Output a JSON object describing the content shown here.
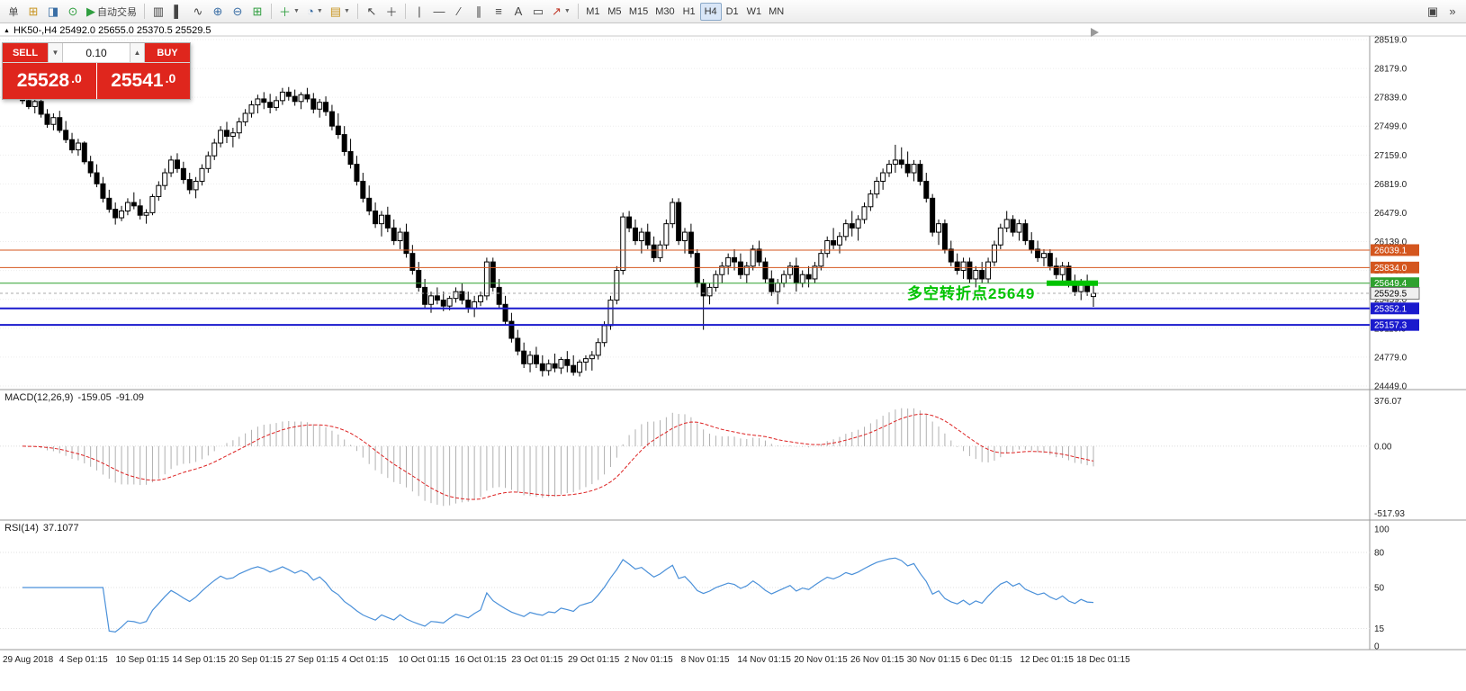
{
  "window": {
    "symbol_header": "HK50-,H4 25492.0 25655.0 25370.5 25529.5"
  },
  "toolbar": {
    "new_order_label": "单",
    "autotrading_label": "自动交易",
    "timeframes": [
      "M1",
      "M5",
      "M15",
      "M30",
      "H1",
      "H4",
      "D1",
      "W1",
      "MN"
    ],
    "active_timeframe": "H4"
  },
  "trade_panel": {
    "sell_label": "SELL",
    "buy_label": "BUY",
    "volume": "0.10",
    "sell_price_main": "25528",
    "sell_price_frac": ".0",
    "buy_price_main": "25541",
    "buy_price_frac": ".0"
  },
  "annotation": {
    "text": "多空转折点25649",
    "color": "#00c300"
  },
  "price_axis": {
    "max": 28519.0,
    "min": 24449.0,
    "step": 340,
    "labels": [
      "28519.0",
      "28179.0",
      "27839.0",
      "27499.0",
      "27159.0",
      "26819.0",
      "26479.0",
      "26139.0",
      "25799.0",
      "25459.0",
      "25119.0",
      "24779.0",
      "24449.0"
    ]
  },
  "hlines": [
    {
      "price": 26039.1,
      "label": "26039.1",
      "color": "#d4561e",
      "width": 1
    },
    {
      "price": 25834.0,
      "label": "25834.0",
      "color": "#d4561e",
      "width": 1
    },
    {
      "price": 25649.4,
      "label": "25649.4",
      "color": "#2fa12f",
      "width": 1
    },
    {
      "price": 25352.1,
      "label": "25352.1",
      "color": "#1a1acd",
      "width": 2
    },
    {
      "price": 25157.3,
      "label": "25157.3",
      "color": "#1a1acd",
      "width": 2
    }
  ],
  "current_price": {
    "value": 25529.5,
    "label": "25529.5"
  },
  "highlight_segment": {
    "price": 25649.4,
    "color": "#00c300"
  },
  "indicators": {
    "macd": {
      "name": "MACD(12,26,9)",
      "value_main": "-159.05",
      "value_signal": "-91.09",
      "fast": 12,
      "slow": 26,
      "signal": 9,
      "axis_labels": [
        "376.07",
        "0.00",
        "-517.93"
      ],
      "histogram_color": "#b0b0b0",
      "signal_color": "#dd2222"
    },
    "rsi": {
      "name": "RSI(14)",
      "value": "37.1077",
      "period": 14,
      "axis_labels": [
        "100",
        "80",
        "50",
        "15",
        "0"
      ],
      "levels": [
        80,
        50,
        15
      ],
      "line_color": "#4a90d9"
    }
  },
  "time_axis": [
    "29 Aug 2018",
    "4 Sep 01:15",
    "10 Sep 01:15",
    "14 Sep 01:15",
    "20 Sep 01:15",
    "27 Sep 01:15",
    "4 Oct 01:15",
    "10 Oct 01:15",
    "16 Oct 01:15",
    "23 Oct 01:15",
    "29 Oct 01:15",
    "2 Nov 01:15",
    "8 Nov 01:15",
    "14 Nov 01:15",
    "20 Nov 01:15",
    "26 Nov 01:15",
    "30 Nov 01:15",
    "6 Dec 01:15",
    "12 Dec 01:15",
    "18 Dec 01:15"
  ],
  "chart_data": {
    "type": "candlestick",
    "symbol": "HK50-",
    "timeframe": "H4",
    "colors": {
      "bull": "#ffffff",
      "bear": "#000000",
      "outline": "#000000",
      "grid": "#ededed"
    },
    "ohlc": [
      [
        27850,
        27920,
        27760,
        27800
      ],
      [
        27800,
        27870,
        27700,
        27730
      ],
      [
        27730,
        27820,
        27650,
        27790
      ],
      [
        27790,
        27840,
        27600,
        27640
      ],
      [
        27640,
        27700,
        27480,
        27520
      ],
      [
        27520,
        27650,
        27450,
        27600
      ],
      [
        27600,
        27680,
        27420,
        27450
      ],
      [
        27450,
        27560,
        27300,
        27340
      ],
      [
        27340,
        27420,
        27180,
        27220
      ],
      [
        27220,
        27350,
        27150,
        27300
      ],
      [
        27300,
        27320,
        27050,
        27080
      ],
      [
        27080,
        27150,
        26900,
        26950
      ],
      [
        26950,
        27050,
        26780,
        26820
      ],
      [
        26820,
        26900,
        26600,
        26650
      ],
      [
        26650,
        26750,
        26480,
        26520
      ],
      [
        26520,
        26600,
        26340,
        26420
      ],
      [
        26420,
        26560,
        26380,
        26500
      ],
      [
        26500,
        26650,
        26450,
        26600
      ],
      [
        26600,
        26720,
        26520,
        26560
      ],
      [
        26560,
        26640,
        26400,
        26450
      ],
      [
        26450,
        26520,
        26350,
        26480
      ],
      [
        26480,
        26700,
        26450,
        26670
      ],
      [
        26670,
        26850,
        26620,
        26800
      ],
      [
        26800,
        27000,
        26750,
        26950
      ],
      [
        26950,
        27150,
        26900,
        27100
      ],
      [
        27100,
        27180,
        26950,
        27000
      ],
      [
        27000,
        27080,
        26820,
        26870
      ],
      [
        26870,
        26950,
        26700,
        26750
      ],
      [
        26750,
        26900,
        26650,
        26850
      ],
      [
        26850,
        27050,
        26800,
        27000
      ],
      [
        27000,
        27200,
        26950,
        27150
      ],
      [
        27150,
        27350,
        27100,
        27300
      ],
      [
        27300,
        27500,
        27250,
        27450
      ],
      [
        27450,
        27550,
        27300,
        27380
      ],
      [
        27380,
        27480,
        27250,
        27420
      ],
      [
        27420,
        27600,
        27350,
        27550
      ],
      [
        27550,
        27700,
        27500,
        27650
      ],
      [
        27650,
        27800,
        27600,
        27750
      ],
      [
        27750,
        27870,
        27650,
        27820
      ],
      [
        27820,
        27900,
        27700,
        27780
      ],
      [
        27780,
        27880,
        27650,
        27720
      ],
      [
        27720,
        27850,
        27680,
        27800
      ],
      [
        27800,
        27950,
        27750,
        27900
      ],
      [
        27900,
        27960,
        27800,
        27850
      ],
      [
        27850,
        27930,
        27740,
        27790
      ],
      [
        27790,
        27900,
        27700,
        27870
      ],
      [
        27870,
        27950,
        27780,
        27820
      ],
      [
        27820,
        27890,
        27650,
        27700
      ],
      [
        27700,
        27820,
        27600,
        27780
      ],
      [
        27780,
        27850,
        27620,
        27670
      ],
      [
        27670,
        27750,
        27450,
        27500
      ],
      [
        27500,
        27650,
        27350,
        27400
      ],
      [
        27400,
        27500,
        27150,
        27200
      ],
      [
        27200,
        27350,
        27000,
        27050
      ],
      [
        27050,
        27150,
        26800,
        26850
      ],
      [
        26850,
        26950,
        26600,
        26650
      ],
      [
        26650,
        26800,
        26450,
        26500
      ],
      [
        26500,
        26600,
        26300,
        26350
      ],
      [
        26350,
        26500,
        26200,
        26450
      ],
      [
        26450,
        26550,
        26250,
        26300
      ],
      [
        26300,
        26400,
        26100,
        26150
      ],
      [
        26150,
        26300,
        26050,
        26250
      ],
      [
        26250,
        26350,
        25950,
        26000
      ],
      [
        26000,
        26100,
        25750,
        25800
      ],
      [
        25800,
        25900,
        25550,
        25600
      ],
      [
        25600,
        25700,
        25350,
        25400
      ],
      [
        25400,
        25550,
        25300,
        25500
      ],
      [
        25500,
        25600,
        25400,
        25450
      ],
      [
        25450,
        25550,
        25320,
        25380
      ],
      [
        25380,
        25500,
        25330,
        25470
      ],
      [
        25470,
        25600,
        25420,
        25550
      ],
      [
        25550,
        25650,
        25400,
        25450
      ],
      [
        25450,
        25550,
        25300,
        25350
      ],
      [
        25350,
        25500,
        25250,
        25430
      ],
      [
        25430,
        25550,
        25380,
        25500
      ],
      [
        25500,
        25950,
        25450,
        25900
      ],
      [
        25900,
        25950,
        25550,
        25600
      ],
      [
        25600,
        25700,
        25350,
        25400
      ],
      [
        25400,
        25500,
        25150,
        25200
      ],
      [
        25200,
        25300,
        24950,
        25000
      ],
      [
        25000,
        25100,
        24800,
        24850
      ],
      [
        24850,
        24950,
        24650,
        24700
      ],
      [
        24700,
        24850,
        24600,
        24800
      ],
      [
        24800,
        24900,
        24650,
        24700
      ],
      [
        24700,
        24800,
        24550,
        24620
      ],
      [
        24620,
        24750,
        24560,
        24700
      ],
      [
        24700,
        24820,
        24600,
        24650
      ],
      [
        24650,
        24780,
        24580,
        24750
      ],
      [
        24750,
        24850,
        24600,
        24680
      ],
      [
        24680,
        24800,
        24560,
        24600
      ],
      [
        24600,
        24750,
        24550,
        24720
      ],
      [
        24720,
        24800,
        24620,
        24760
      ],
      [
        24760,
        24850,
        24620,
        24800
      ],
      [
        24800,
        25000,
        24750,
        24950
      ],
      [
        24950,
        25200,
        24900,
        25150
      ],
      [
        25150,
        25500,
        25100,
        25450
      ],
      [
        25450,
        25850,
        25400,
        25800
      ],
      [
        25800,
        26480,
        25750,
        26430
      ],
      [
        26430,
        26500,
        26250,
        26300
      ],
      [
        26300,
        26400,
        26100,
        26150
      ],
      [
        26150,
        26300,
        26000,
        26250
      ],
      [
        26250,
        26350,
        26050,
        26100
      ],
      [
        26100,
        26200,
        25900,
        25950
      ],
      [
        25950,
        26150,
        25900,
        26100
      ],
      [
        26100,
        26400,
        26050,
        26350
      ],
      [
        26350,
        26650,
        26300,
        26600
      ],
      [
        26600,
        26650,
        26100,
        26150
      ],
      [
        26150,
        26300,
        26000,
        26250
      ],
      [
        26250,
        26350,
        25950,
        26000
      ],
      [
        26000,
        26050,
        25600,
        25650
      ],
      [
        25650,
        25700,
        25100,
        25500
      ],
      [
        25500,
        25650,
        25400,
        25600
      ],
      [
        25600,
        25800,
        25550,
        25750
      ],
      [
        25750,
        25900,
        25650,
        25850
      ],
      [
        25850,
        26000,
        25750,
        25950
      ],
      [
        25950,
        26050,
        25800,
        25900
      ],
      [
        25900,
        26000,
        25700,
        25750
      ],
      [
        25750,
        25900,
        25650,
        25850
      ],
      [
        25850,
        26100,
        25800,
        26050
      ],
      [
        26050,
        26150,
        25850,
        25900
      ],
      [
        25900,
        25950,
        25650,
        25700
      ],
      [
        25700,
        25800,
        25500,
        25550
      ],
      [
        25550,
        25700,
        25400,
        25650
      ],
      [
        25650,
        25800,
        25600,
        25750
      ],
      [
        25750,
        25900,
        25700,
        25850
      ],
      [
        25850,
        25950,
        25550,
        25650
      ],
      [
        25650,
        25800,
        25600,
        25750
      ],
      [
        25750,
        25850,
        25600,
        25700
      ],
      [
        25700,
        25900,
        25650,
        25850
      ],
      [
        25850,
        26050,
        25800,
        26000
      ],
      [
        26000,
        26200,
        25950,
        26150
      ],
      [
        26150,
        26300,
        26050,
        26100
      ],
      [
        26100,
        26250,
        26000,
        26200
      ],
      [
        26200,
        26400,
        26150,
        26350
      ],
      [
        26350,
        26500,
        26200,
        26300
      ],
      [
        26300,
        26450,
        26150,
        26400
      ],
      [
        26400,
        26600,
        26350,
        26550
      ],
      [
        26550,
        26750,
        26500,
        26700
      ],
      [
        26700,
        26900,
        26650,
        26850
      ],
      [
        26850,
        27000,
        26750,
        26950
      ],
      [
        26950,
        27100,
        26900,
        27050
      ],
      [
        27050,
        27280,
        26950,
        27100
      ],
      [
        27100,
        27250,
        27000,
        27050
      ],
      [
        27050,
        27200,
        26900,
        26950
      ],
      [
        26950,
        27100,
        26850,
        27050
      ],
      [
        27050,
        27100,
        26800,
        26850
      ],
      [
        26850,
        26950,
        26600,
        26650
      ],
      [
        26650,
        26700,
        26200,
        26250
      ],
      [
        26250,
        26400,
        26100,
        26350
      ],
      [
        26350,
        26400,
        26000,
        26050
      ],
      [
        26050,
        26150,
        25850,
        25900
      ],
      [
        25900,
        26000,
        25750,
        25800
      ],
      [
        25800,
        25950,
        25700,
        25900
      ],
      [
        25900,
        25950,
        25650,
        25700
      ],
      [
        25700,
        25850,
        25600,
        25800
      ],
      [
        25800,
        25900,
        25650,
        25700
      ],
      [
        25700,
        25950,
        25650,
        25900
      ],
      [
        25900,
        26150,
        25850,
        26100
      ],
      [
        26100,
        26350,
        26050,
        26300
      ],
      [
        26300,
        26500,
        26250,
        26400
      ],
      [
        26400,
        26450,
        26200,
        26250
      ],
      [
        26250,
        26400,
        26150,
        26350
      ],
      [
        26350,
        26400,
        26100,
        26150
      ],
      [
        26150,
        26250,
        26000,
        26050
      ],
      [
        26050,
        26150,
        25900,
        25950
      ],
      [
        25950,
        26050,
        25850,
        26000
      ],
      [
        26000,
        26050,
        25800,
        25850
      ],
      [
        25850,
        25950,
        25700,
        25750
      ],
      [
        25750,
        25900,
        25650,
        25850
      ],
      [
        25850,
        25900,
        25600,
        25650
      ],
      [
        25650,
        25750,
        25500,
        25550
      ],
      [
        25550,
        25700,
        25450,
        25650
      ],
      [
        25650,
        25750,
        25500,
        25550
      ],
      [
        25492,
        25655,
        25370.5,
        25529.5
      ]
    ]
  }
}
